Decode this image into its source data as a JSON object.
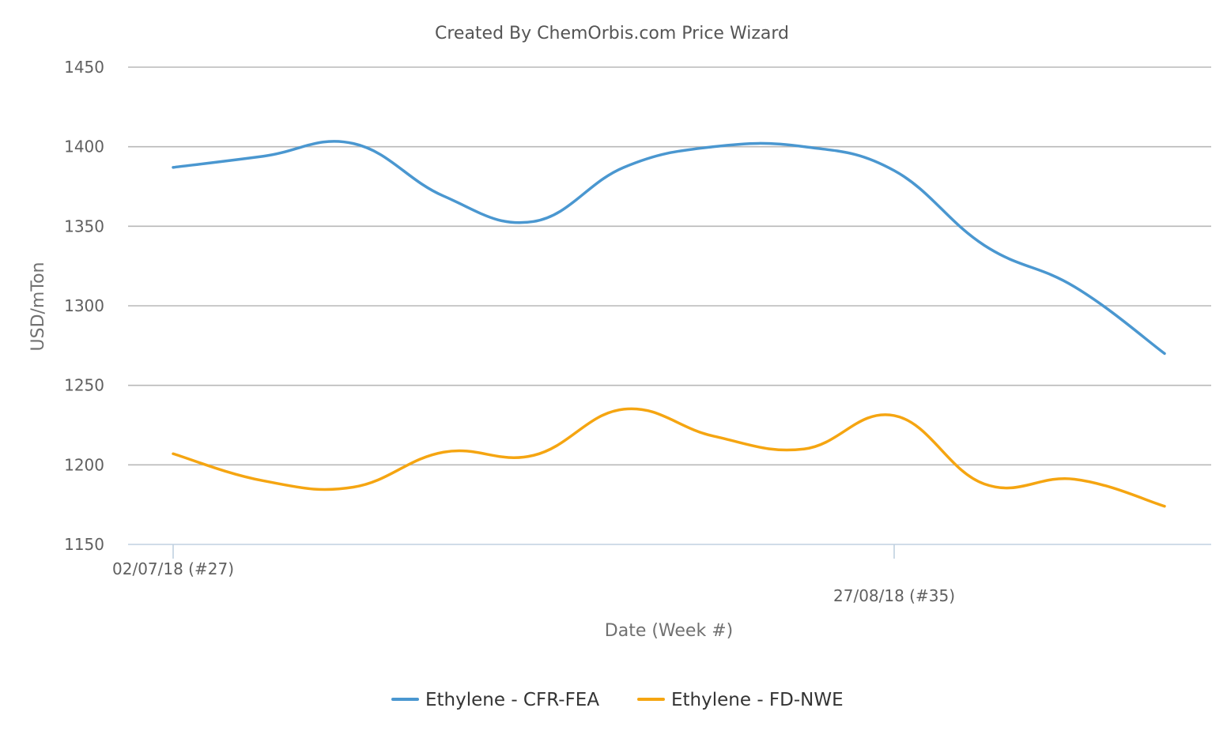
{
  "chart_data": {
    "type": "line",
    "title": "Created By ChemOrbis.com Price Wizard",
    "xlabel": "Date (Week #)",
    "ylabel": "USD/mTon",
    "ylim": [
      1150,
      1450
    ],
    "yticks": [
      1150,
      1200,
      1250,
      1300,
      1350,
      1400,
      1450
    ],
    "x_tick_labels": [
      {
        "label": "02/07/18 (#27)",
        "index": 0
      },
      {
        "label": "27/08/18 (#35)",
        "index": 8
      }
    ],
    "x_count": 13,
    "grid": true,
    "legend_position": "bottom",
    "series": [
      {
        "name": "Ethylene - CFR-FEA",
        "color": "#4a97d0",
        "values": [
          1387,
          1394,
          1402,
          1369,
          1353,
          1387,
          1400,
          1400,
          1385,
          1338,
          1312,
          1270
        ]
      },
      {
        "name": "Ethylene - FD-NWE",
        "color": "#f5a511",
        "values": [
          1207,
          1190,
          1186,
          1208,
          1206,
          1235,
          1218,
          1210,
          1231,
          1188,
          1191,
          1174
        ]
      }
    ]
  }
}
